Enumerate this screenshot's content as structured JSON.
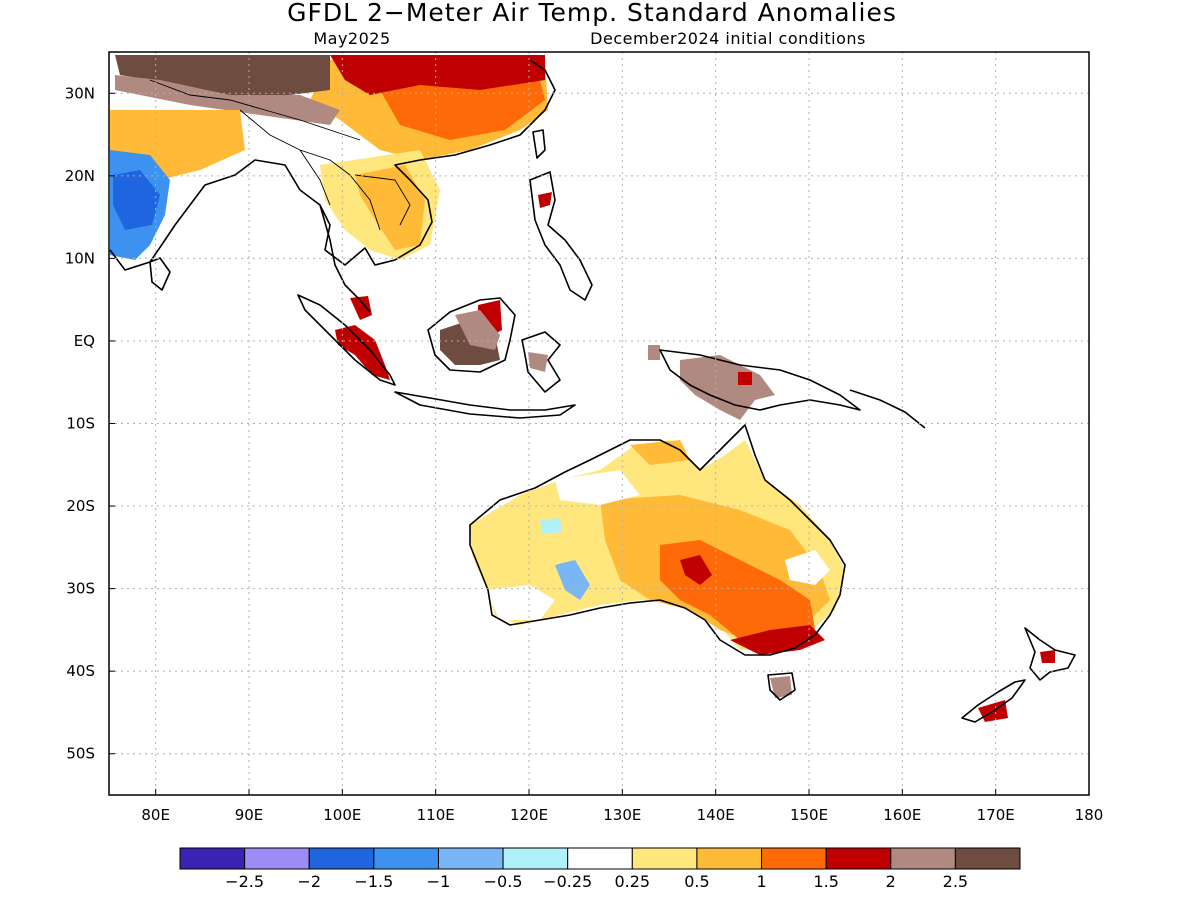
{
  "title": "GFDL 2−Meter Air Temp. Standard Anomalies",
  "subtitle_left": "May2025",
  "subtitle_right": "December2024 initial conditions",
  "map": {
    "lon_min": 75,
    "lon_max": 180,
    "lat_min": -55,
    "lat_max": 35,
    "lon_ticks": [
      {
        "value": 80,
        "label": "80E"
      },
      {
        "value": 90,
        "label": "90E"
      },
      {
        "value": 100,
        "label": "100E"
      },
      {
        "value": 110,
        "label": "110E"
      },
      {
        "value": 120,
        "label": "120E"
      },
      {
        "value": 130,
        "label": "130E"
      },
      {
        "value": 140,
        "label": "140E"
      },
      {
        "value": 150,
        "label": "150E"
      },
      {
        "value": 160,
        "label": "160E"
      },
      {
        "value": 170,
        "label": "170E"
      },
      {
        "value": 180,
        "label": "180"
      }
    ],
    "lat_ticks": [
      {
        "value": 30,
        "label": "30N"
      },
      {
        "value": 20,
        "label": "20N"
      },
      {
        "value": 10,
        "label": "10N"
      },
      {
        "value": 0,
        "label": "EQ"
      },
      {
        "value": -10,
        "label": "10S"
      },
      {
        "value": -20,
        "label": "20S"
      },
      {
        "value": -30,
        "label": "30S"
      },
      {
        "value": -40,
        "label": "40S"
      },
      {
        "value": -50,
        "label": "50S"
      }
    ]
  },
  "colorbar": {
    "colors": [
      "#3a23b4",
      "#9d8cf5",
      "#1f65e0",
      "#3d92f0",
      "#78b6f5",
      "#b0f0f8",
      "#ffffff",
      "#ffe77e",
      "#ffbb37",
      "#ff6a09",
      "#c00000",
      "#b08a80",
      "#6e4c40"
    ],
    "labels": [
      "−2.5",
      "−2",
      "−1.5",
      "−1",
      "−0.5",
      "−0.25",
      "0.25",
      "0.5",
      "1",
      "1.5",
      "2",
      "2.5"
    ]
  },
  "regions": {
    "tibet_plateau": 2.8,
    "south_china": 1.5,
    "indochina": 0.8,
    "india_north": 0.8,
    "india_central": -1.3,
    "himalaya_rim": 2.2,
    "borneo": 2.6,
    "borneo_north": 2.1,
    "sumatra": 2.1,
    "new_guinea": 2.3,
    "australia_southeast": 1.7,
    "australia_se_coast": 2.1,
    "australia_west": 0.4,
    "australia_southwest": -0.6,
    "tasmania": 2.4,
    "new_zealand_south": 2.1,
    "taiwan_luzon": 2.0
  }
}
